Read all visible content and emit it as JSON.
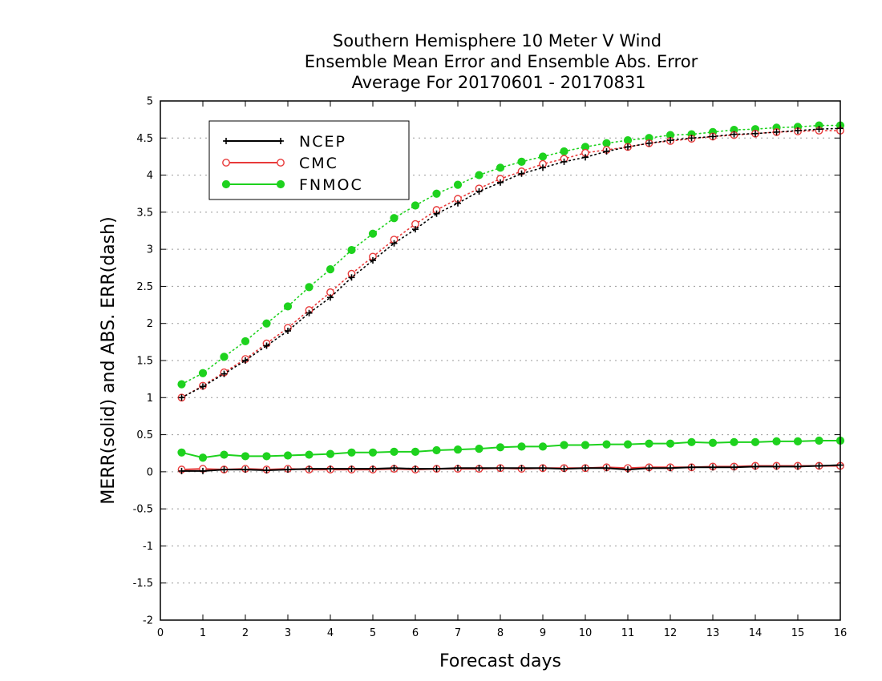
{
  "chart_data": {
    "type": "line",
    "title": [
      "Southern Hemisphere 10 Meter V Wind",
      "Ensemble Mean Error and Ensemble Abs. Error",
      "Average For 20170601 - 20170831"
    ],
    "xlabel": "Forecast days",
    "ylabel": "MERR(solid) and ABS. ERR(dash)",
    "xlim": [
      0,
      16
    ],
    "ylim": [
      -2,
      5
    ],
    "x_ticks": [
      0,
      1,
      2,
      3,
      4,
      5,
      6,
      7,
      8,
      9,
      10,
      11,
      12,
      13,
      14,
      15,
      16
    ],
    "y_ticks": [
      -2,
      -1.5,
      -1,
      -0.5,
      0,
      0.5,
      1,
      1.5,
      2,
      2.5,
      3,
      3.5,
      4,
      4.5,
      5
    ],
    "y_tick_labels": [
      "-2",
      "-1.5",
      "-1",
      "-0.5",
      "0",
      "0.5",
      "1",
      "1.5",
      "2",
      "2.5",
      "3",
      "3.5",
      "4",
      "4.5",
      "5"
    ],
    "grid": "horizontal dotted",
    "legend_position": "top-left",
    "x": [
      0.5,
      1,
      1.5,
      2,
      2.5,
      3,
      3.5,
      4,
      4.5,
      5,
      5.5,
      6,
      6.5,
      7,
      7.5,
      8,
      8.5,
      9,
      9.5,
      10,
      10.5,
      11,
      11.5,
      12,
      12.5,
      13,
      13.5,
      14,
      14.5,
      15,
      15.5,
      16
    ],
    "series": [
      {
        "name": "NCEP",
        "color": "#000000",
        "marker": "plus",
        "abs_err": [
          1.0,
          1.15,
          1.32,
          1.5,
          1.7,
          1.9,
          2.14,
          2.35,
          2.62,
          2.85,
          3.08,
          3.27,
          3.48,
          3.62,
          3.78,
          3.9,
          4.02,
          4.1,
          4.18,
          4.24,
          4.32,
          4.38,
          4.43,
          4.47,
          4.5,
          4.52,
          4.55,
          4.56,
          4.58,
          4.6,
          4.62,
          4.63
        ],
        "mean_err": [
          0.01,
          0.01,
          0.03,
          0.03,
          0.02,
          0.03,
          0.04,
          0.04,
          0.04,
          0.04,
          0.05,
          0.04,
          0.04,
          0.05,
          0.05,
          0.05,
          0.05,
          0.05,
          0.04,
          0.05,
          0.05,
          0.03,
          0.05,
          0.05,
          0.06,
          0.06,
          0.06,
          0.07,
          0.07,
          0.07,
          0.08,
          0.09
        ]
      },
      {
        "name": "CMC",
        "color": "#e83a3a",
        "marker": "open-circle",
        "abs_err": [
          1.0,
          1.16,
          1.34,
          1.52,
          1.73,
          1.94,
          2.18,
          2.42,
          2.67,
          2.9,
          3.13,
          3.34,
          3.53,
          3.68,
          3.82,
          3.95,
          4.05,
          4.15,
          4.22,
          4.3,
          4.34,
          4.38,
          4.43,
          4.46,
          4.49,
          4.52,
          4.54,
          4.56,
          4.58,
          4.59,
          4.6,
          4.6
        ],
        "mean_err": [
          0.03,
          0.04,
          0.03,
          0.04,
          0.03,
          0.04,
          0.03,
          0.03,
          0.03,
          0.03,
          0.04,
          0.03,
          0.04,
          0.04,
          0.04,
          0.05,
          0.04,
          0.05,
          0.05,
          0.05,
          0.06,
          0.05,
          0.06,
          0.06,
          0.06,
          0.07,
          0.07,
          0.08,
          0.08,
          0.08,
          0.08,
          0.08
        ]
      },
      {
        "name": "FNMOC",
        "color": "#1ed21e",
        "marker": "filled-circle",
        "abs_err": [
          1.18,
          1.33,
          1.55,
          1.76,
          2.0,
          2.23,
          2.49,
          2.73,
          2.99,
          3.21,
          3.42,
          3.59,
          3.75,
          3.87,
          4.0,
          4.1,
          4.18,
          4.25,
          4.32,
          4.38,
          4.43,
          4.47,
          4.5,
          4.54,
          4.55,
          4.58,
          4.61,
          4.62,
          4.64,
          4.65,
          4.67,
          4.67
        ],
        "mean_err": [
          0.26,
          0.19,
          0.23,
          0.21,
          0.21,
          0.22,
          0.23,
          0.24,
          0.26,
          0.26,
          0.27,
          0.27,
          0.29,
          0.3,
          0.31,
          0.33,
          0.34,
          0.34,
          0.36,
          0.36,
          0.37,
          0.37,
          0.38,
          0.38,
          0.4,
          0.39,
          0.4,
          0.4,
          0.41,
          0.41,
          0.42,
          0.42
        ]
      }
    ]
  }
}
